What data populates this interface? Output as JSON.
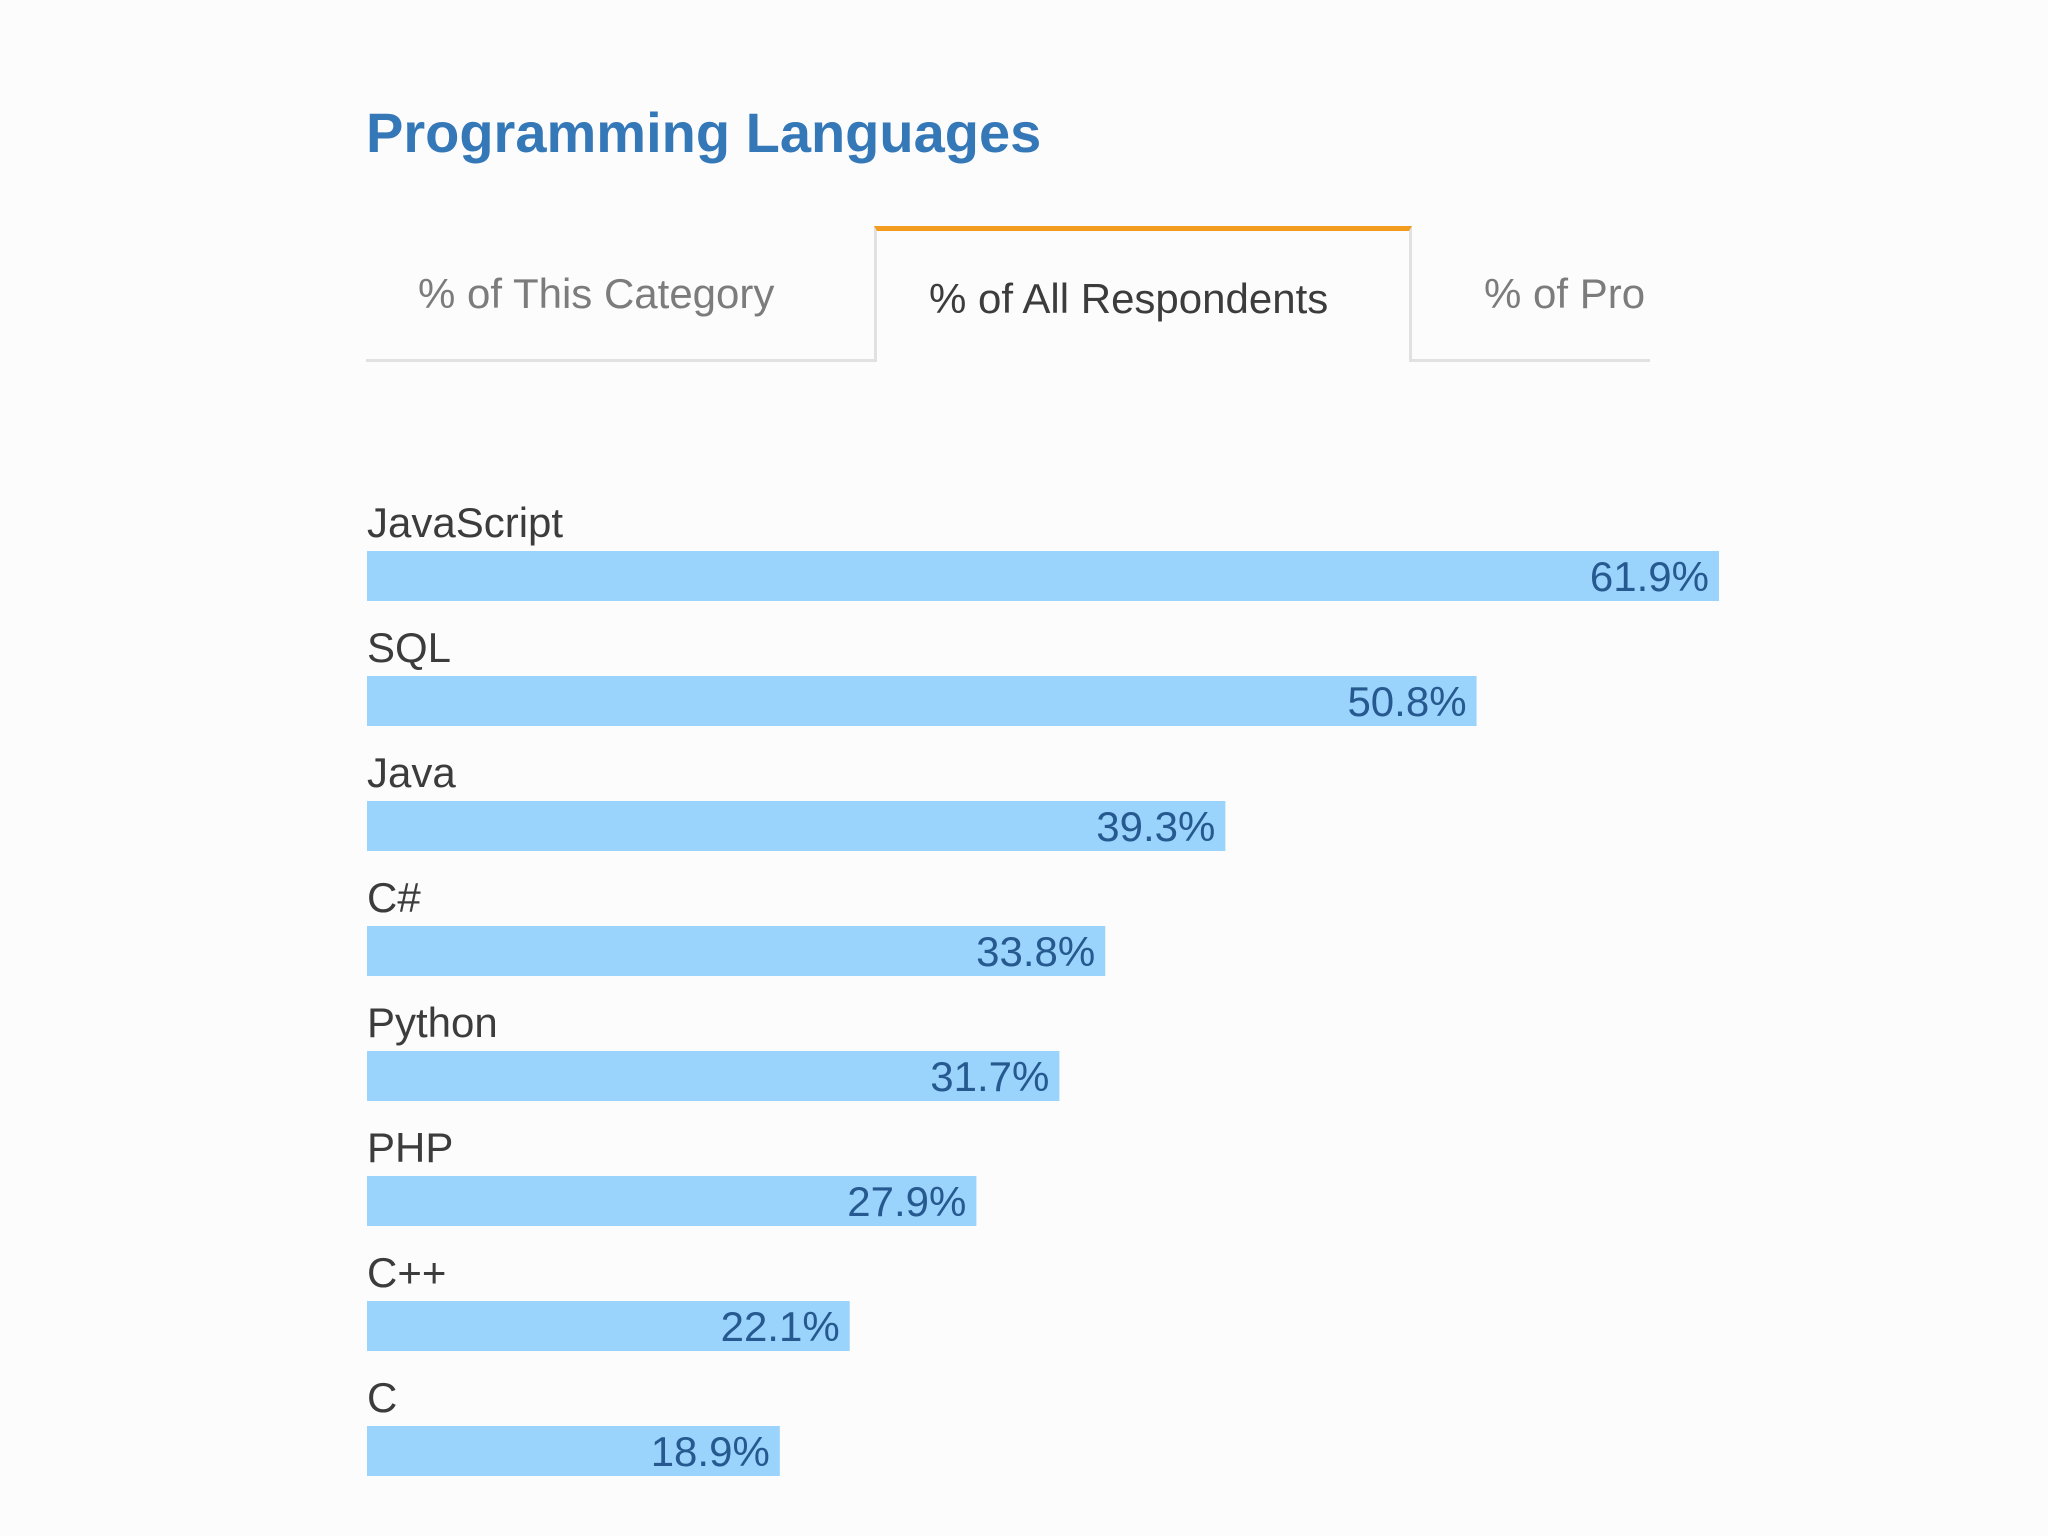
{
  "header": {
    "title": "Programming Languages"
  },
  "tabs": [
    {
      "label": "% of This Category",
      "active": false
    },
    {
      "label": "% of All Respondents",
      "active": true
    },
    {
      "label": "% of Pro",
      "active": false
    }
  ],
  "colors": {
    "title": "#3478b8",
    "bar": "#9ad3fb",
    "value_label": "#25598f",
    "category_label": "#3c3c3c",
    "active_tab_accent": "#f39c1f"
  },
  "chart_data": {
    "type": "bar",
    "orientation": "horizontal",
    "categories": [
      "JavaScript",
      "SQL",
      "Java",
      "C#",
      "Python",
      "PHP",
      "C++",
      "C"
    ],
    "values": [
      61.9,
      50.8,
      39.3,
      33.8,
      31.7,
      27.9,
      22.1,
      18.9
    ],
    "value_labels": [
      "61.9%",
      "50.8%",
      "39.3%",
      "33.8%",
      "31.7%",
      "27.9%",
      "22.1%",
      "18.9%"
    ],
    "unit": "%",
    "xlim": [
      0,
      61.9
    ],
    "grid": false,
    "legend": "none"
  }
}
